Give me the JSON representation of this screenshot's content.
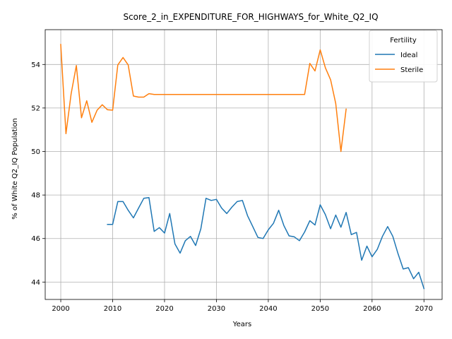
{
  "chart_data": {
    "type": "line",
    "title": "Score_2_in_EXPENDITURE_FOR_HIGHWAYS_for_White_Q2_IQ",
    "xlabel": "Years",
    "ylabel": "% of White Q2_IQ Population",
    "xlim": [
      1997,
      2073.5
    ],
    "ylim": [
      43.2,
      55.6
    ],
    "xticks": [
      2000,
      2010,
      2020,
      2030,
      2040,
      2050,
      2060,
      2070
    ],
    "yticks": [
      44,
      46,
      48,
      50,
      52,
      54
    ],
    "grid": true,
    "legend": {
      "title": "Fertility",
      "position": "top-right"
    },
    "series": [
      {
        "name": "Ideal",
        "color": "#1f77b4",
        "x": [
          2009,
          2010,
          2011,
          2012,
          2013,
          2014,
          2015,
          2016,
          2017,
          2018,
          2019,
          2020,
          2021,
          2022,
          2023,
          2024,
          2025,
          2026,
          2027,
          2028,
          2029,
          2030,
          2031,
          2032,
          2033,
          2034,
          2035,
          2036,
          2037,
          2038,
          2039,
          2040,
          2041,
          2042,
          2043,
          2044,
          2045,
          2046,
          2047,
          2048,
          2049,
          2050,
          2051,
          2052,
          2053,
          2054,
          2055,
          2056,
          2057,
          2058,
          2059,
          2060,
          2061,
          2062,
          2063,
          2064,
          2065,
          2066,
          2067,
          2068,
          2069,
          2070
        ],
        "y": [
          46.65,
          46.65,
          47.7,
          47.7,
          47.3,
          46.95,
          47.4,
          47.85,
          47.88,
          46.33,
          46.5,
          46.25,
          47.15,
          45.75,
          45.33,
          45.9,
          46.1,
          45.68,
          46.45,
          47.85,
          47.75,
          47.8,
          47.4,
          47.15,
          47.45,
          47.7,
          47.75,
          47.05,
          46.55,
          46.05,
          46.0,
          46.4,
          46.7,
          47.3,
          46.6,
          46.12,
          46.08,
          45.9,
          46.3,
          46.82,
          46.62,
          47.55,
          47.1,
          46.45,
          47.08,
          46.52,
          47.2,
          46.18,
          46.28,
          45.0,
          45.65,
          45.16,
          45.5,
          46.1,
          46.55,
          46.1,
          45.3,
          44.6,
          44.66,
          44.15,
          44.45,
          43.7
        ]
      },
      {
        "name": "Sterile",
        "color": "#ff7f0e",
        "x": [
          2000,
          2001,
          2002,
          2003,
          2004,
          2005,
          2006,
          2007,
          2008,
          2009,
          2010,
          2011,
          2012,
          2013,
          2014,
          2015,
          2016,
          2017,
          2018,
          2019,
          2020,
          2021,
          2022,
          2023,
          2024,
          2025,
          2026,
          2027,
          2028,
          2029,
          2030,
          2031,
          2032,
          2033,
          2034,
          2035,
          2036,
          2037,
          2038,
          2039,
          2040,
          2041,
          2042,
          2043,
          2044,
          2045,
          2046,
          2047,
          2048,
          2049,
          2050,
          2051,
          2052,
          2053,
          2054,
          2055
        ],
        "y": [
          54.92,
          50.82,
          52.65,
          53.95,
          51.55,
          52.33,
          51.34,
          51.9,
          52.15,
          51.92,
          51.9,
          53.98,
          54.32,
          53.98,
          52.55,
          52.5,
          52.5,
          52.66,
          52.62,
          52.62,
          52.62,
          52.62,
          52.62,
          52.62,
          52.62,
          52.62,
          52.62,
          52.62,
          52.62,
          52.62,
          52.62,
          52.62,
          52.62,
          52.62,
          52.62,
          52.62,
          52.62,
          52.62,
          52.62,
          52.62,
          52.62,
          52.62,
          52.62,
          52.62,
          52.62,
          52.62,
          52.62,
          52.62,
          54.05,
          53.7,
          54.67,
          53.85,
          53.3,
          52.2,
          50.0,
          51.95
        ]
      }
    ]
  }
}
